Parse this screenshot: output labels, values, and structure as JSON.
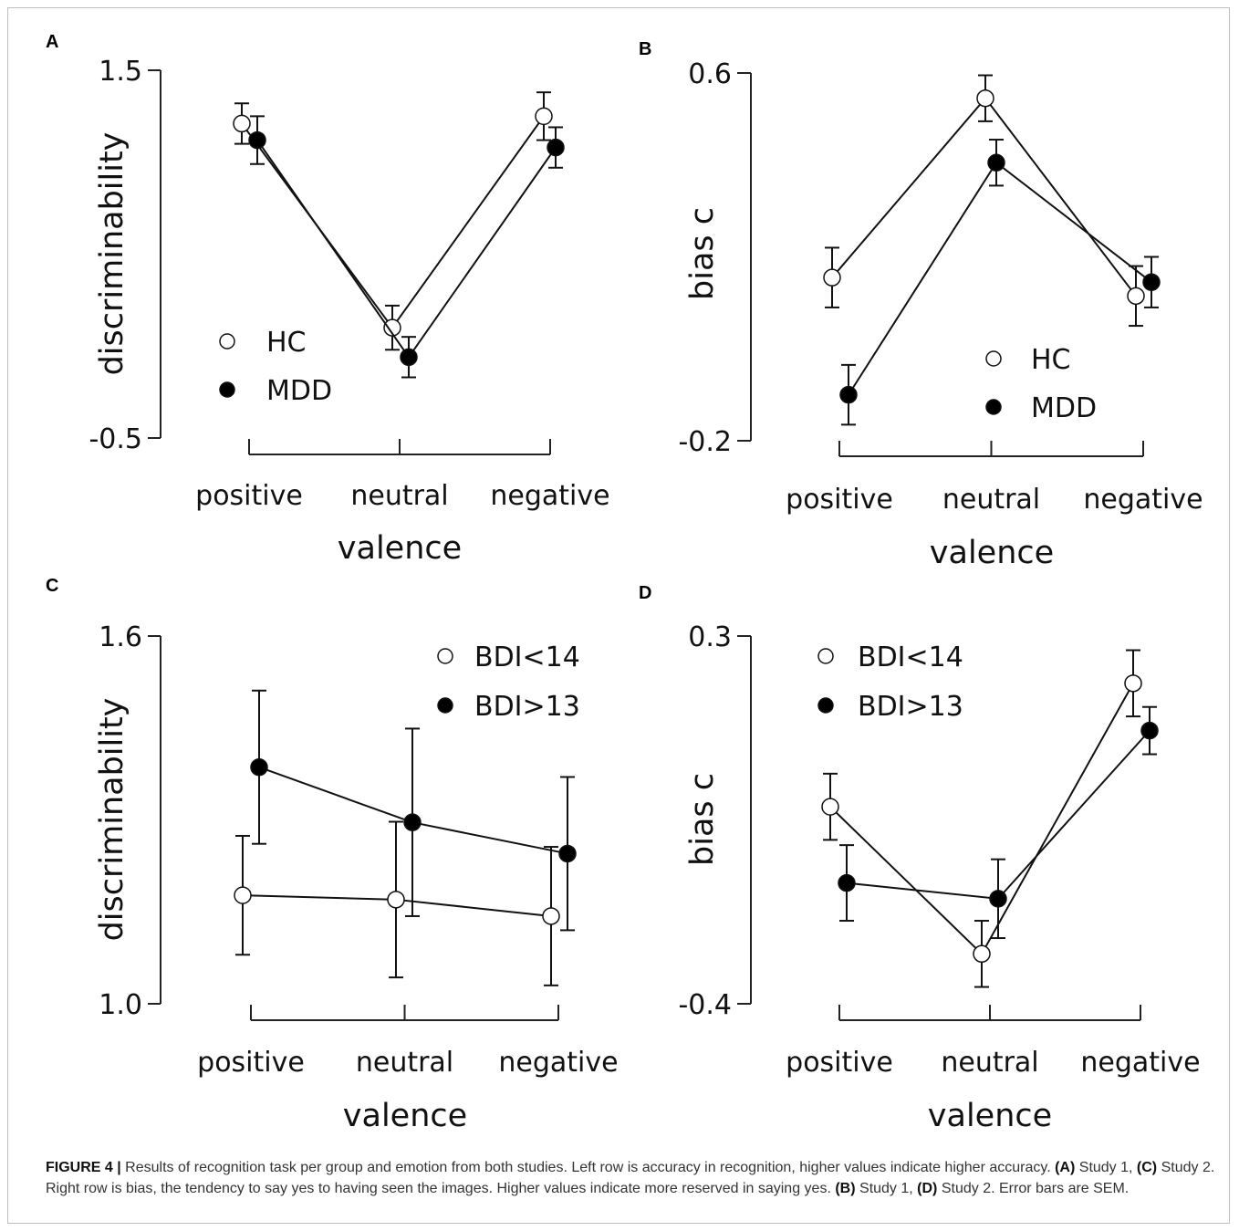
{
  "caption": {
    "figure_label": "FIGURE 4 |",
    "part1": "Results of recognition task per group and emotion from both studies. Left row is accuracy in recognition, higher values indicate higher accuracy.",
    "ref_a": "(A)",
    "part2": "Study 1,",
    "ref_c": "(C)",
    "part3": "Study 2. Right row is bias, the tendency to say yes to having seen the images. Higher values indicate more reserved in saying yes.",
    "ref_b": "(B)",
    "part4": "Study 1,",
    "ref_d": "(D)",
    "part5": "Study 2. Error bars are SEM."
  },
  "chart_data": [
    {
      "panel": "A",
      "type": "line",
      "categories": [
        "positive",
        "neutral",
        "negative"
      ],
      "xlabel": "valence",
      "ylabel": "discriminability",
      "ylim": [
        -0.5,
        1.5
      ],
      "yticks": [
        "1.5",
        "-0.5"
      ],
      "ytick_values": [
        1.5,
        -0.5
      ],
      "legend": "center-left",
      "series": [
        {
          "name": "HC",
          "marker": "open",
          "values": [
            1.21,
            0.1,
            1.25
          ],
          "sem": [
            0.11,
            0.12,
            0.13
          ]
        },
        {
          "name": "MDD",
          "marker": "filled",
          "values": [
            1.12,
            -0.06,
            1.08
          ],
          "sem": [
            0.13,
            0.11,
            0.11
          ]
        }
      ]
    },
    {
      "panel": "B",
      "type": "line",
      "categories": [
        "positive",
        "neutral",
        "negative"
      ],
      "xlabel": "valence",
      "ylabel": "bias c",
      "ylim": [
        -0.2,
        0.6
      ],
      "yticks": [
        "0.6",
        "-0.2"
      ],
      "ytick_values": [
        0.6,
        -0.2
      ],
      "legend": "center-right",
      "series": [
        {
          "name": "HC",
          "marker": "open",
          "values": [
            0.155,
            0.545,
            0.115
          ],
          "sem": [
            0.065,
            0.05,
            0.065
          ]
        },
        {
          "name": "MDD",
          "marker": "filled",
          "values": [
            -0.1,
            0.405,
            0.145
          ],
          "sem": [
            0.065,
            0.05,
            0.055
          ]
        }
      ]
    },
    {
      "panel": "C",
      "type": "line",
      "categories": [
        "positive",
        "neutral",
        "negative"
      ],
      "xlabel": "valence",
      "ylabel": "discriminability",
      "ylim": [
        1.0,
        1.6
      ],
      "yticks": [
        "1.6",
        "1.0"
      ],
      "ytick_values": [
        1.6,
        1.0
      ],
      "legend": "top-right",
      "series": [
        {
          "name": "BDI<14",
          "marker": "open",
          "values": [
            1.177,
            1.17,
            1.143
          ],
          "sem": [
            0.097,
            0.127,
            0.113
          ]
        },
        {
          "name": "BDI>13",
          "marker": "filled",
          "values": [
            1.386,
            1.296,
            1.245
          ],
          "sem": [
            0.125,
            0.153,
            0.125
          ]
        }
      ]
    },
    {
      "panel": "D",
      "type": "line",
      "categories": [
        "positive",
        "neutral",
        "negative"
      ],
      "xlabel": "valence",
      "ylabel": "bias c",
      "ylim": [
        -0.4,
        0.3
      ],
      "yticks": [
        "0.3",
        "-0.4"
      ],
      "ytick_values": [
        0.3,
        -0.4
      ],
      "legend": "top-left",
      "series": [
        {
          "name": "BDI<14",
          "marker": "open",
          "values": [
            -0.025,
            -0.305,
            0.21
          ],
          "sem": [
            0.063,
            0.063,
            0.063
          ]
        },
        {
          "name": "BDI>13",
          "marker": "filled",
          "values": [
            -0.17,
            -0.2,
            0.12
          ],
          "sem": [
            0.072,
            0.075,
            0.045
          ]
        }
      ]
    }
  ]
}
